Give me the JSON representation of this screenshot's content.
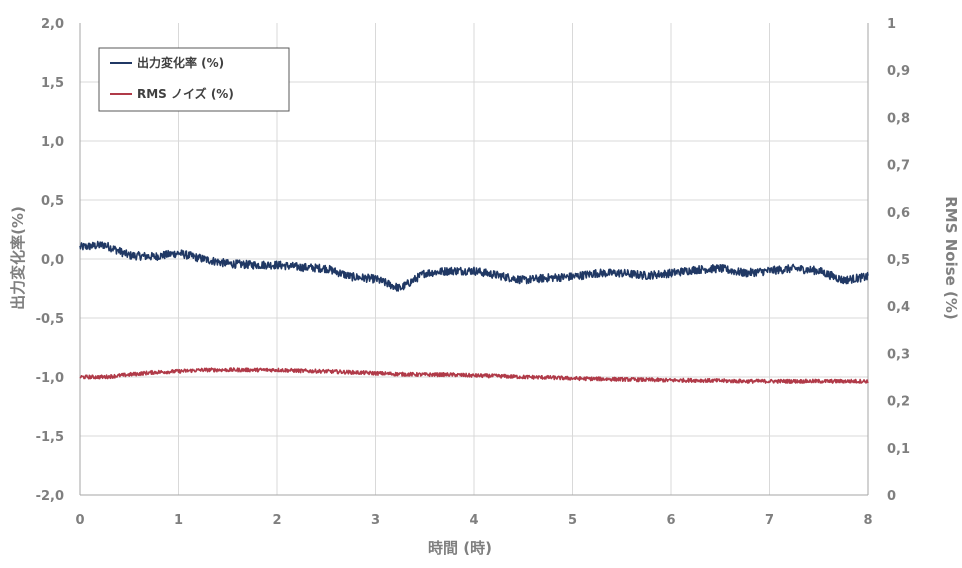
{
  "chart_data": {
    "type": "line",
    "x_axis": {
      "label": "時間 (時)",
      "range": [
        0,
        8
      ],
      "ticks": [
        "0",
        "1",
        "2",
        "3",
        "4",
        "5",
        "6",
        "7",
        "8"
      ]
    },
    "y_left": {
      "label": "出力変化率(%)",
      "range": [
        -2.0,
        2.0
      ],
      "ticks": [
        "2,0",
        "1,5",
        "1,0",
        "0,5",
        "0,0",
        "-0,5",
        "-1,0",
        "-1,5",
        "-2,0"
      ]
    },
    "y_right": {
      "label": "RMS Noise (%)",
      "range": [
        0,
        1
      ],
      "ticks": [
        "1",
        "0,9",
        "0,8",
        "0,7",
        "0,6",
        "0,5",
        "0,4",
        "0,3",
        "0,2",
        "0,1",
        "0"
      ]
    },
    "grid": true,
    "legend_placement": "top-left",
    "series": [
      {
        "name": "出力変化率 (%)",
        "axis": "left",
        "color": "#203864",
        "x": [
          0,
          0.25,
          0.5,
          0.75,
          1.0,
          1.25,
          1.5,
          1.75,
          2.0,
          2.25,
          2.5,
          2.75,
          3.0,
          3.25,
          3.5,
          3.75,
          4.0,
          4.25,
          4.5,
          4.75,
          5.0,
          5.25,
          5.5,
          5.75,
          6.0,
          6.25,
          6.5,
          6.75,
          7.0,
          7.25,
          7.5,
          7.75,
          8.0
        ],
        "y": [
          0.1,
          0.12,
          0.03,
          0.02,
          0.05,
          0.0,
          -0.04,
          -0.05,
          -0.05,
          -0.07,
          -0.08,
          -0.15,
          -0.17,
          -0.25,
          -0.12,
          -0.1,
          -0.1,
          -0.14,
          -0.18,
          -0.16,
          -0.15,
          -0.12,
          -0.12,
          -0.14,
          -0.12,
          -0.09,
          -0.08,
          -0.12,
          -0.1,
          -0.08,
          -0.1,
          -0.18,
          -0.15
        ]
      },
      {
        "name": "RMS ノイズ (%)",
        "axis": "right",
        "color": "#b03a48",
        "x": [
          0,
          0.25,
          0.5,
          0.75,
          1.0,
          1.25,
          1.5,
          1.75,
          2.0,
          2.25,
          2.5,
          2.75,
          3.0,
          3.25,
          3.5,
          3.75,
          4.0,
          4.25,
          4.5,
          4.75,
          5.0,
          5.25,
          5.5,
          5.75,
          6.0,
          6.25,
          6.5,
          6.75,
          7.0,
          7.25,
          7.5,
          7.75,
          8.0
        ],
        "y": [
          0.25,
          0.25,
          0.255,
          0.26,
          0.262,
          0.265,
          0.265,
          0.265,
          0.265,
          0.263,
          0.262,
          0.26,
          0.258,
          0.256,
          0.255,
          0.255,
          0.253,
          0.252,
          0.25,
          0.249,
          0.247,
          0.246,
          0.245,
          0.244,
          0.243,
          0.243,
          0.242,
          0.241,
          0.241,
          0.241,
          0.241,
          0.241,
          0.241
        ]
      }
    ]
  }
}
